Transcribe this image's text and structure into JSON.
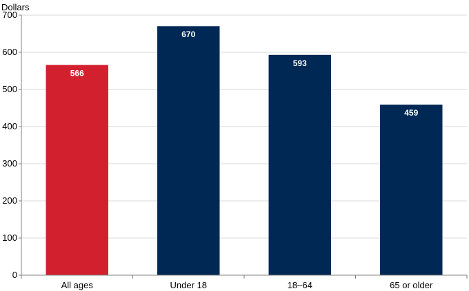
{
  "chart_data": {
    "type": "bar",
    "ylabel": "Dollars",
    "categories": [
      "All ages",
      "Under 18",
      "18–64",
      "65 or older"
    ],
    "values": [
      566,
      670,
      593,
      459
    ],
    "data_labels": [
      "566",
      "670",
      "593",
      "459"
    ],
    "bar_colors": [
      "#d2202e",
      "#002855",
      "#002855",
      "#002855"
    ],
    "ylim": [
      0,
      700
    ],
    "yticks": [
      0,
      100,
      200,
      300,
      400,
      500,
      600,
      700
    ],
    "grid": true,
    "legend": "none"
  }
}
